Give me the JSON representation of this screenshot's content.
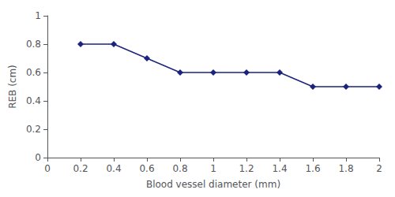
{
  "chart_data": {
    "type": "line",
    "x": [
      0.2,
      0.4,
      0.6,
      0.8,
      1.0,
      1.2,
      1.4,
      1.6,
      1.8,
      2.0
    ],
    "values": [
      0.8,
      0.8,
      0.7,
      0.6,
      0.6,
      0.6,
      0.6,
      0.5,
      0.5,
      0.5
    ],
    "xlim": [
      0,
      2.0
    ],
    "ylim": [
      0,
      1.0
    ],
    "xticks": [
      0,
      0.2,
      0.4,
      0.6,
      0.8,
      1.0,
      1.2,
      1.4,
      1.6,
      1.8,
      2.0
    ],
    "yticks": [
      0,
      0.2,
      0.4,
      0.6,
      0.8,
      1.0
    ],
    "xlabel": "Blood vessel diameter (mm)",
    "ylabel": "REB (cm)",
    "color": "#1a237e",
    "marker": "diamond",
    "grid": false
  }
}
